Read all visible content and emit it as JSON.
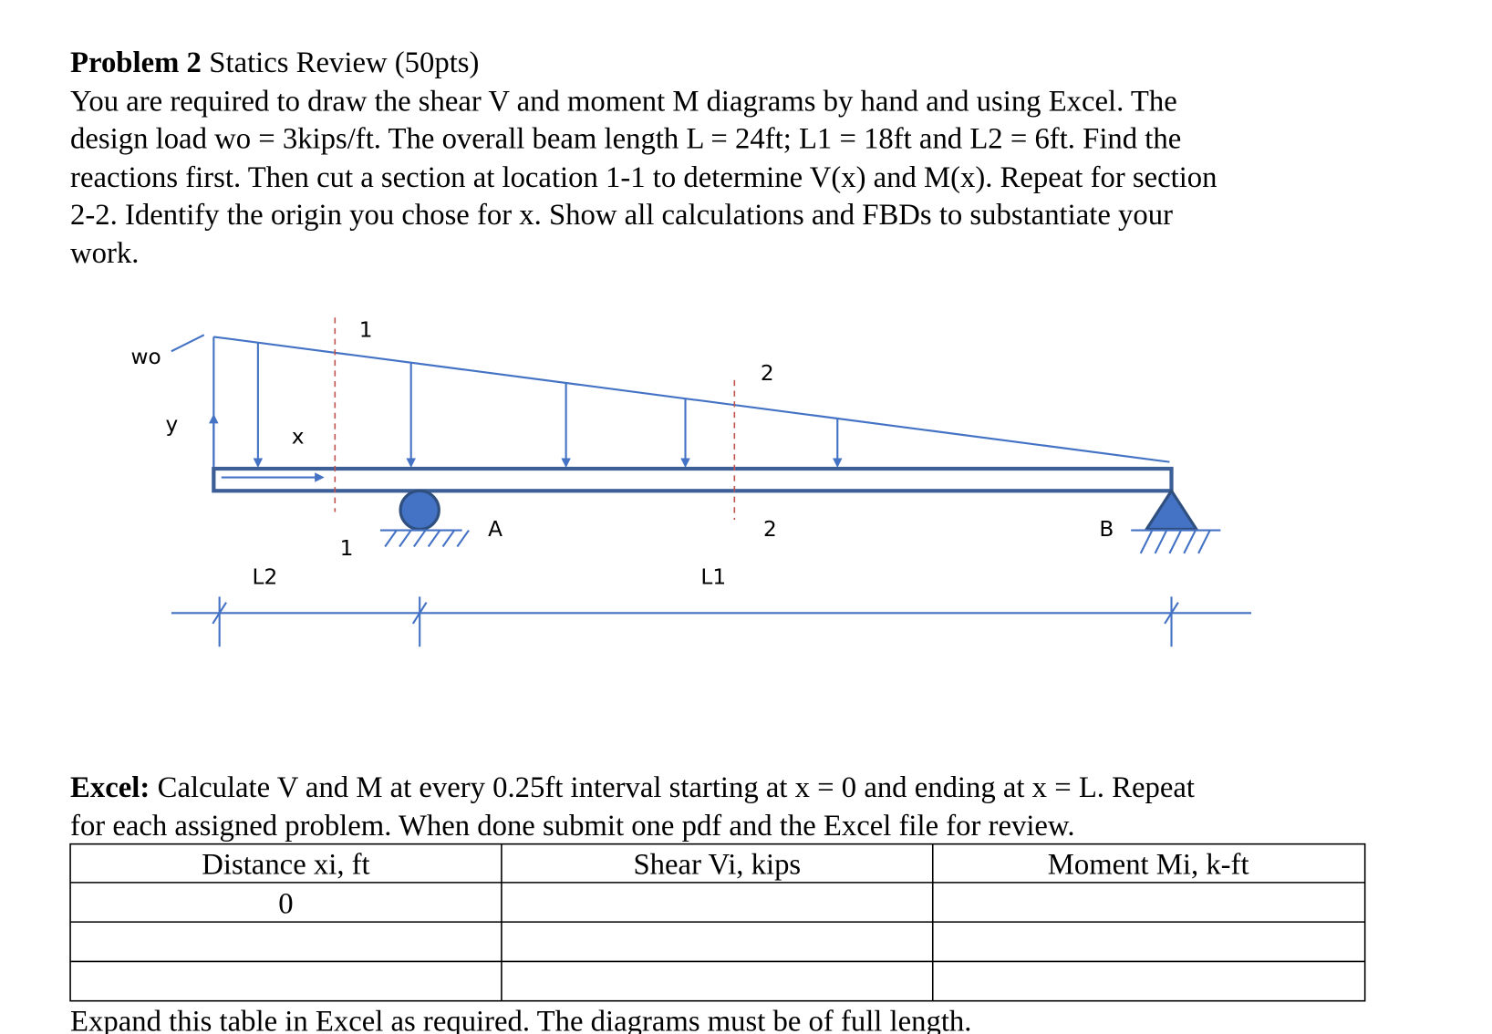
{
  "problem": {
    "heading": "Problem 2",
    "heading_rest": "Statics Review (50pts)",
    "lines": [
      "You are required to draw the shear V and moment M diagrams by hand and using Excel. The",
      "design load wo = 3kips/ft. The overall beam length L = 24ft; L1 = 18ft and L2 = 6ft. Find the",
      "reactions first. Then cut a section at location 1-1 to determine V(x) and M(x). Repeat for section",
      "2-2. Identify the origin you chose for x. Show all calculations and FBDs to substantiate your",
      "work."
    ]
  },
  "diagram": {
    "load_label": "wo",
    "y_axis": "y",
    "x_axis": "x",
    "section1_top": "1",
    "section1_bottom": "1",
    "section2_top": "2",
    "section2_bottom": "2",
    "support_a": "A",
    "support_b": "B",
    "dim_l2": "L2",
    "dim_l1": "L1"
  },
  "excel": {
    "heading": "Excel:",
    "lines": [
      "Calculate V and M at every 0.25ft interval starting at x = 0 and ending at x = L. Repeat",
      "for each assigned problem. When done submit one pdf and the Excel file for review."
    ]
  },
  "table": {
    "header": [
      "Distance xi, ft",
      "Shear Vi, kips",
      "Moment Mi, k-ft"
    ],
    "rows": [
      [
        "0"
      ]
    ]
  },
  "footer": "Expand this table in Excel as required. The diagrams must be of full length."
}
